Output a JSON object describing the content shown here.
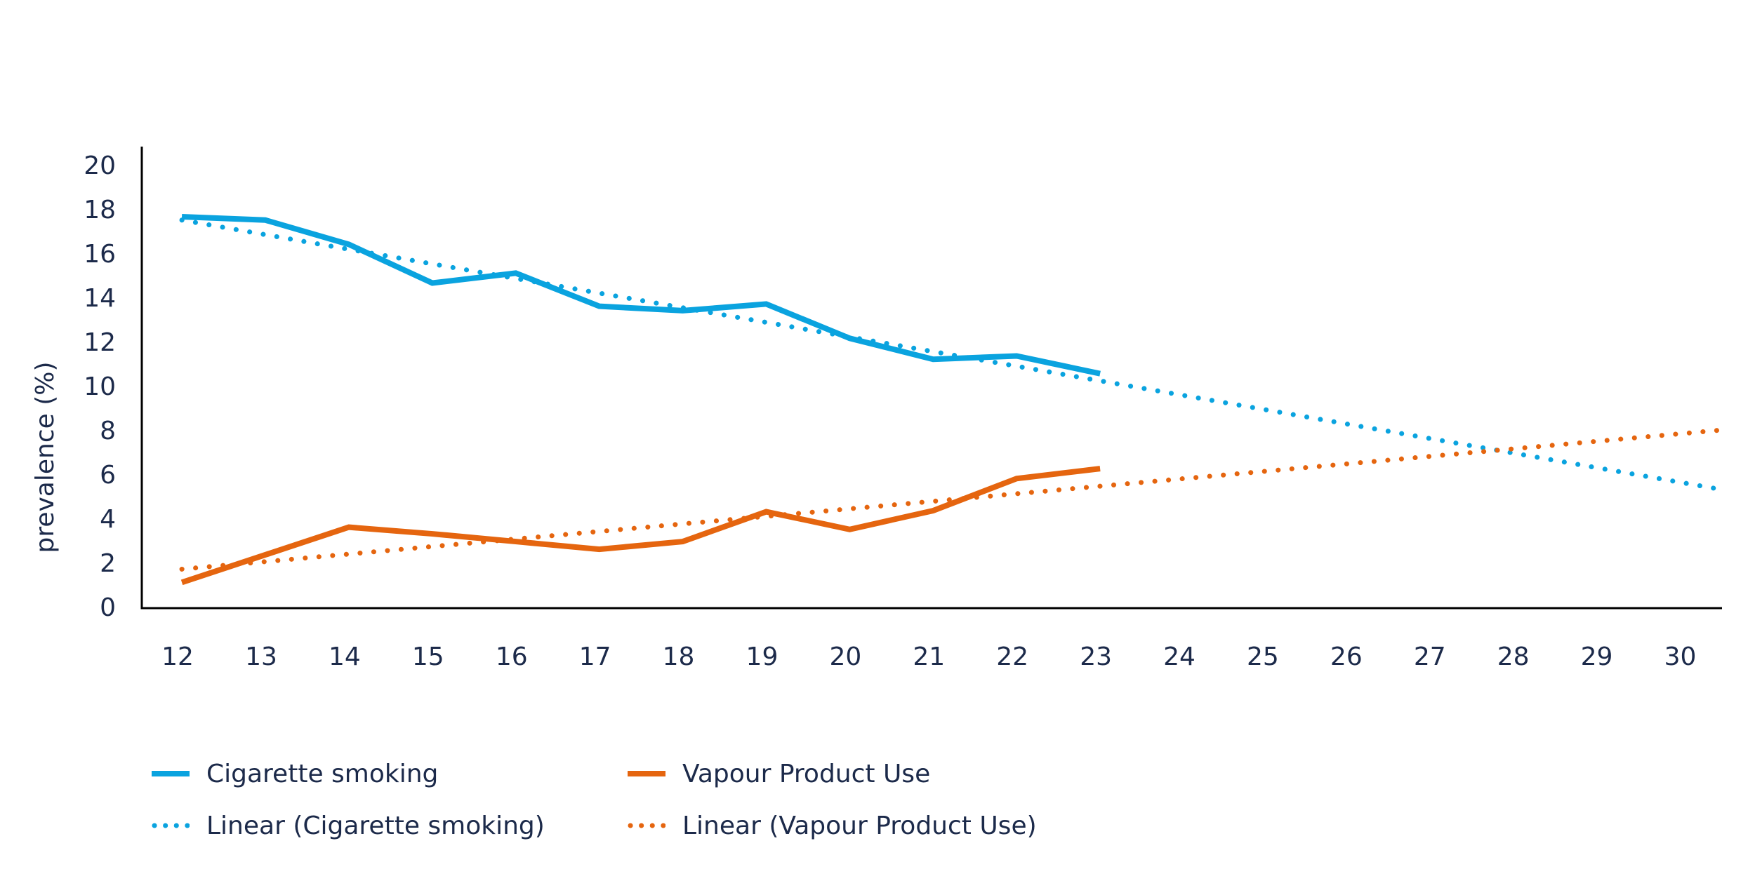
{
  "chart_data": {
    "type": "line",
    "title": "",
    "xlabel": "",
    "ylabel": "prevalence (%)",
    "x_ticks": [
      "12",
      "13",
      "14",
      "15",
      "16",
      "17",
      "18",
      "19",
      "20",
      "21",
      "22",
      "23",
      "24",
      "25",
      "26",
      "27",
      "28",
      "29",
      "30"
    ],
    "y_ticks": [
      "0",
      "2",
      "4",
      "6",
      "8",
      "10",
      "12",
      "14",
      "16",
      "18",
      "20"
    ],
    "xlim": [
      11.52,
      30.45
    ],
    "ylim": [
      0,
      20
    ],
    "grid": false,
    "legend_position": "bottom",
    "x": [
      12,
      13,
      14,
      15,
      16,
      17,
      18,
      19,
      20,
      21,
      22,
      23
    ],
    "series": [
      {
        "name": "Cigarette smoking",
        "style": "solid",
        "color": "#0aa3df",
        "values": [
          17.65,
          17.5,
          16.4,
          14.65,
          15.1,
          13.6,
          13.4,
          13.7,
          12.15,
          11.2,
          11.35,
          10.55
        ]
      },
      {
        "name": "Vapour Product Use",
        "style": "solid",
        "color": "#e5650f",
        "values": [
          1.1,
          2.35,
          3.6,
          3.3,
          2.95,
          2.6,
          2.95,
          4.3,
          3.5,
          4.35,
          5.8,
          6.25
        ]
      }
    ],
    "trendlines": [
      {
        "name": "Linear (Cigarette smoking)",
        "style": "dotted",
        "color": "#0aa3df",
        "x_start": 12,
        "y_start": 17.5,
        "x_end": 30.45,
        "y_end": 5.3
      },
      {
        "name": "Linear (Vapour Product Use)",
        "style": "dotted",
        "color": "#e5650f",
        "x_start": 12,
        "y_start": 1.7,
        "x_end": 30.45,
        "y_end": 8.0
      }
    ],
    "legend": [
      {
        "label": "Cigarette smoking",
        "style": "solid",
        "color": "#0aa3df"
      },
      {
        "label": "Vapour Product Use",
        "style": "solid",
        "color": "#e5650f"
      },
      {
        "label": "Linear (Cigarette smoking)",
        "style": "dotted",
        "color": "#0aa3df"
      },
      {
        "label": "Linear (Vapour Product Use)",
        "style": "dotted",
        "color": "#e5650f"
      }
    ]
  }
}
